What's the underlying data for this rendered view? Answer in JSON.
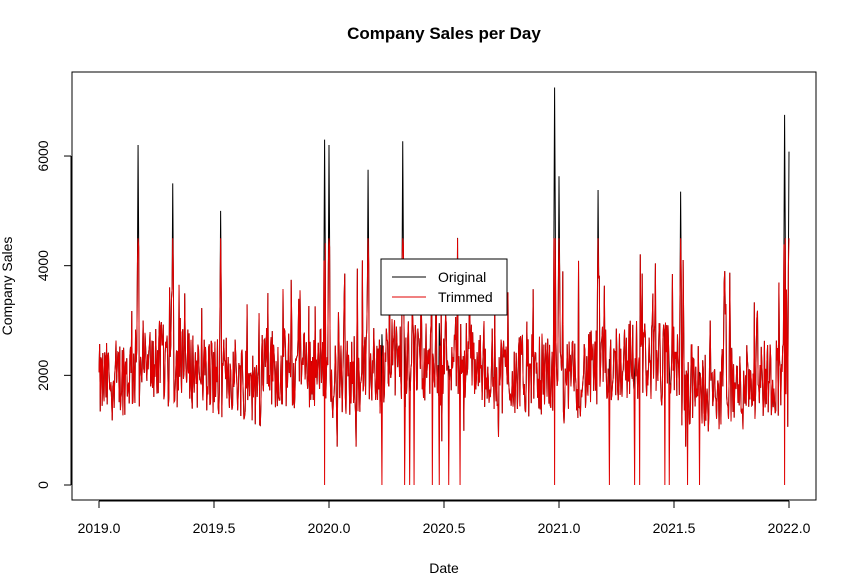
{
  "chart_data": {
    "type": "line",
    "title": "Company Sales per Day",
    "xlabel": "Date",
    "ylabel": "Company Sales",
    "xlim": [
      2019.0,
      2022.0
    ],
    "ylim": [
      0,
      7250
    ],
    "x_ticks": [
      2019.0,
      2019.5,
      2020.0,
      2020.5,
      2021.0,
      2021.5,
      2022.0
    ],
    "x_tick_labels": [
      "2019.0",
      "2019.5",
      "2020.0",
      "2020.5",
      "2021.0",
      "2021.5",
      "2022.0"
    ],
    "y_ticks": [
      0,
      2000,
      4000,
      6000
    ],
    "y_tick_labels": [
      "0",
      "2000",
      "4000",
      "6000"
    ],
    "legend_position": "center",
    "grid": false,
    "trim_cap": 4500,
    "series": [
      {
        "name": "Original",
        "color": "#000000",
        "peaks": [
          [
            2019.17,
            6200
          ],
          [
            2019.32,
            5500
          ],
          [
            2019.53,
            5000
          ],
          [
            2019.98,
            6300
          ],
          [
            2020.0,
            6200
          ],
          [
            2020.17,
            5750
          ],
          [
            2020.32,
            6270
          ],
          [
            2020.98,
            7250
          ],
          [
            2021.0,
            5630
          ],
          [
            2021.17,
            5380
          ],
          [
            2021.53,
            5350
          ],
          [
            2021.98,
            6750
          ],
          [
            2022.0,
            6080
          ]
        ]
      },
      {
        "name": "Trimmed",
        "color": "#e00000",
        "zero_dips": [
          2019.98,
          2020.23,
          2020.33,
          2020.35,
          2020.37,
          2020.45,
          2020.48,
          2020.52,
          2020.57,
          2020.98,
          2021.22,
          2021.33,
          2021.35,
          2021.46,
          2021.48,
          2021.56,
          2021.61,
          2021.98
        ]
      }
    ]
  }
}
